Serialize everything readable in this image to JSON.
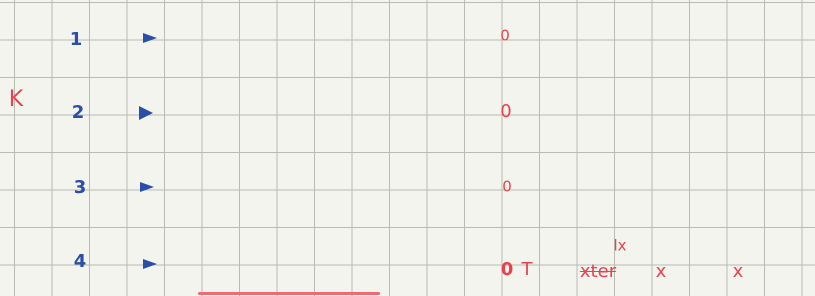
{
  "side_label": "K",
  "rows": [
    {
      "number": "1",
      "mark": "0"
    },
    {
      "number": "2",
      "mark": "0"
    },
    {
      "number": "3",
      "mark": "0"
    },
    {
      "number": "4",
      "mark": "0"
    }
  ],
  "notes": [
    "T",
    "xter",
    "x",
    "x",
    "lx"
  ]
}
